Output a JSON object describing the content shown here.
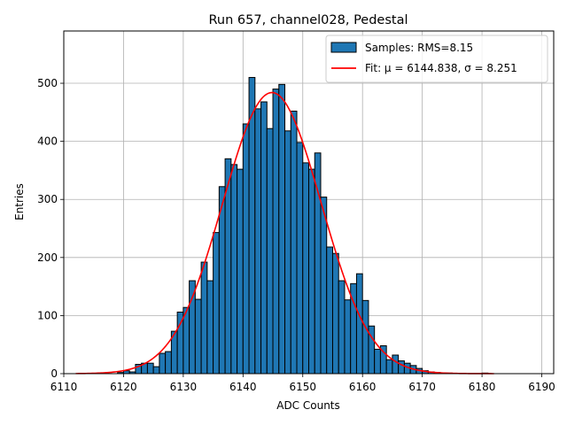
{
  "chart_data": {
    "type": "bar",
    "title": "Run 657, channel028, Pedestal",
    "xlabel": "ADC Counts",
    "ylabel": "Entries",
    "xlim": [
      6110,
      6192
    ],
    "ylim": [
      0,
      590
    ],
    "x_ticks": [
      6110,
      6120,
      6130,
      6140,
      6150,
      6160,
      6170,
      6180,
      6190
    ],
    "y_ticks": [
      0,
      100,
      200,
      300,
      400,
      500
    ],
    "grid": true,
    "legend_position": "top-right",
    "histogram": {
      "name": "Samples: RMS=8.15",
      "color": "#1f77b4",
      "edge_color": "#000000",
      "bin_width": 1,
      "x": [
        6119,
        6120,
        6121,
        6122,
        6123,
        6124,
        6125,
        6126,
        6127,
        6128,
        6129,
        6130,
        6131,
        6132,
        6133,
        6134,
        6135,
        6136,
        6137,
        6138,
        6139,
        6140,
        6141,
        6142,
        6143,
        6144,
        6145,
        6146,
        6147,
        6148,
        6149,
        6150,
        6151,
        6152,
        6153,
        6154,
        6155,
        6156,
        6157,
        6158,
        6159,
        6160,
        6161,
        6162,
        6163,
        6164,
        6165,
        6166,
        6167,
        6168,
        6169,
        6170,
        6171,
        6172,
        6173,
        6174,
        6175,
        6176,
        6177,
        6178,
        6179,
        6180,
        6181
      ],
      "values": [
        2,
        5,
        3,
        16,
        18,
        18,
        12,
        35,
        38,
        73,
        106,
        114,
        160,
        128,
        192,
        160,
        243,
        322,
        370,
        360,
        352,
        430,
        510,
        456,
        468,
        422,
        490,
        498,
        418,
        452,
        398,
        363,
        352,
        380,
        304,
        218,
        207,
        160,
        127,
        155,
        172,
        126,
        82,
        42,
        48,
        24,
        32,
        22,
        18,
        14,
        9,
        5,
        3,
        2,
        1,
        1,
        0,
        0,
        0,
        0,
        0,
        1,
        0
      ]
    },
    "fit": {
      "name": "Fit: μ = 6144.838, σ = 8.251",
      "color": "#ff0000",
      "mu": 6144.838,
      "sigma": 8.251,
      "amplitude": 484,
      "x_range": [
        6112,
        6182
      ]
    }
  }
}
